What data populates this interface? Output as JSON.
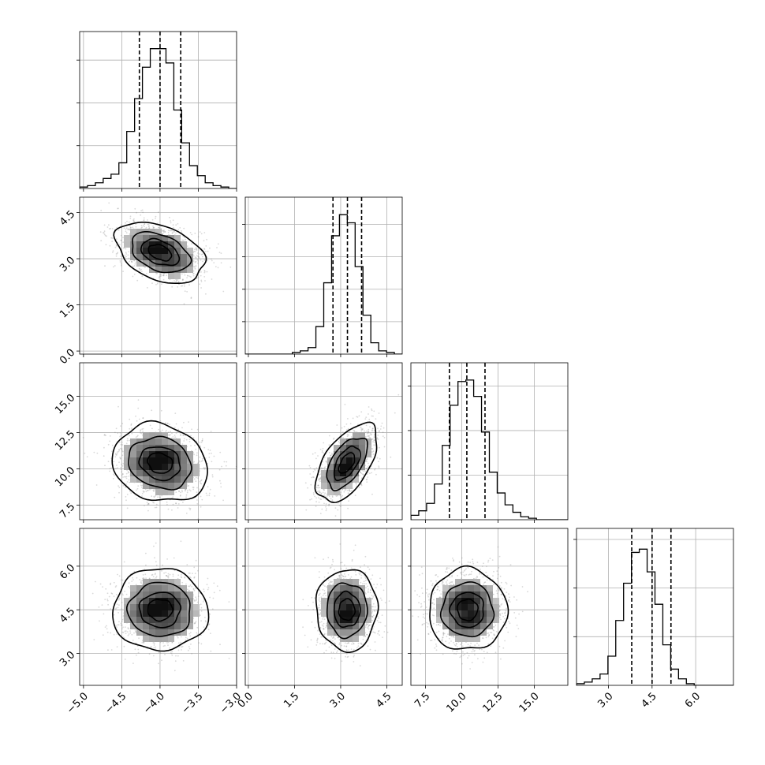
{
  "chart_data": {
    "type": "corner",
    "title": "",
    "params": [
      {
        "range": [
          -5.05,
          -3.0
        ],
        "ticks": [
          -5.0,
          -4.5,
          -4.0,
          -3.5,
          -3.0
        ],
        "tick_labels": [
          "−5.0",
          "−4.5",
          "−4.0",
          "−3.5",
          "−3.0"
        ]
      },
      {
        "range": [
          -0.1,
          5.0
        ],
        "ticks": [
          0.0,
          1.5,
          3.0,
          4.5
        ],
        "tick_labels": [
          "0.0",
          "1.5",
          "3.0",
          "4.5"
        ]
      },
      {
        "range": [
          6.5,
          17.3
        ],
        "ticks": [
          7.5,
          10.0,
          12.5,
          15.0
        ],
        "tick_labels": [
          "7.5",
          "10.0",
          "12.5",
          "15.0"
        ]
      },
      {
        "range": [
          1.9,
          7.3
        ],
        "ticks": [
          3.0,
          4.5,
          6.0
        ],
        "tick_labels": [
          "3.0",
          "4.5",
          "6.0"
        ]
      }
    ],
    "histograms": [
      {
        "edges_range": [
          -5.05,
          -3.0
        ],
        "bins": 20,
        "counts": [
          1,
          2,
          4,
          7,
          10,
          18,
          40,
          63,
          85,
          98,
          98,
          88,
          55,
          32,
          16,
          9,
          4,
          2,
          1,
          0
        ],
        "max": 100,
        "quantiles": [
          -4.27,
          -4.0,
          -3.73
        ],
        "yticks": [
          30,
          60,
          90
        ]
      },
      {
        "edges_range": [
          -0.1,
          5.0
        ],
        "bins": 20,
        "counts": [
          0,
          0,
          0,
          0,
          0,
          0,
          1,
          2,
          4,
          17,
          44,
          73,
          86,
          81,
          54,
          24,
          7,
          2,
          1,
          0
        ],
        "max": 88,
        "quantiles": [
          2.75,
          3.22,
          3.68
        ],
        "yticks": [
          20,
          40,
          60,
          80
        ]
      },
      {
        "edges_range": [
          6.5,
          17.3
        ],
        "bins": 20,
        "counts": [
          3,
          6,
          11,
          24,
          50,
          77,
          93,
          94,
          83,
          59,
          32,
          18,
          10,
          5,
          2,
          1,
          0,
          0,
          0,
          0
        ],
        "max": 96,
        "quantiles": [
          9.15,
          10.35,
          11.6
        ],
        "yticks": [
          30,
          60,
          90
        ]
      },
      {
        "edges_range": [
          1.9,
          7.3
        ],
        "bins": 20,
        "counts": [
          1,
          2,
          4,
          7,
          18,
          40,
          63,
          82,
          84,
          70,
          50,
          25,
          10,
          4,
          1,
          0,
          0,
          0,
          0,
          0
        ],
        "max": 88,
        "quantiles": [
          3.8,
          4.5,
          5.15
        ],
        "yticks": [
          30,
          60,
          90
        ]
      }
    ],
    "pairs": [
      {
        "x": 0,
        "y": 1,
        "mean": [
          -4.0,
          3.2
        ],
        "sd": [
          0.28,
          0.48
        ],
        "corr": -0.38
      },
      {
        "x": 0,
        "y": 2,
        "mean": [
          -4.0,
          10.4
        ],
        "sd": [
          0.3,
          1.3
        ],
        "corr": -0.15
      },
      {
        "x": 1,
        "y": 2,
        "mean": [
          3.2,
          10.4
        ],
        "sd": [
          0.48,
          1.3
        ],
        "corr": 0.55
      },
      {
        "x": 0,
        "y": 3,
        "mean": [
          -4.0,
          4.5
        ],
        "sd": [
          0.3,
          0.68
        ],
        "corr": 0.0
      },
      {
        "x": 1,
        "y": 3,
        "mean": [
          3.2,
          4.5
        ],
        "sd": [
          0.48,
          0.68
        ],
        "corr": 0.0
      },
      {
        "x": 2,
        "y": 3,
        "mean": [
          10.4,
          4.5
        ],
        "sd": [
          1.3,
          0.68
        ],
        "corr": 0.0
      }
    ],
    "contour_levels": [
      "0.5σ",
      "1.0σ",
      "1.5σ",
      "2.0σ"
    ],
    "grid": true,
    "legend": "none",
    "colors": {
      "line": "#000000",
      "grid": "#b0b0b0",
      "points": "#808080"
    }
  }
}
